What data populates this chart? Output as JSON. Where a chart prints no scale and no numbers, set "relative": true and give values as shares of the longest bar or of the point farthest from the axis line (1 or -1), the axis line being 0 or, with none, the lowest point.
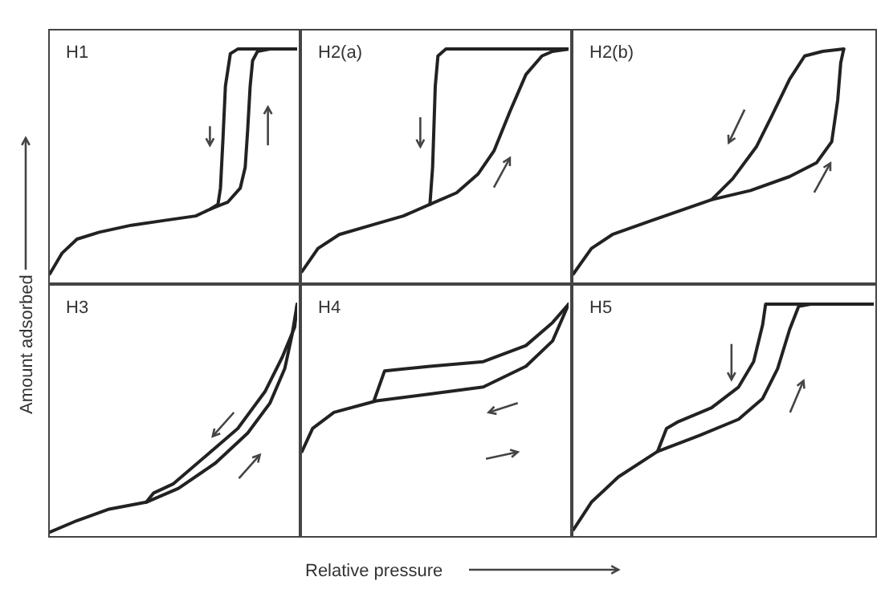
{
  "chart_data": [
    {
      "type": "line",
      "title": "H1",
      "ylabel": "Amount adsorbed",
      "relative": true,
      "categories": [
        null,
        null,
        null,
        null,
        null,
        null,
        null,
        null,
        null,
        null,
        null,
        null,
        null,
        null,
        null,
        null,
        null,
        null,
        null,
        null,
        null,
        null,
        null,
        null,
        null,
        null,
        null,
        null,
        null,
        null,
        null,
        null,
        null,
        null,
        null,
        null,
        null,
        null,
        null,
        null,
        null,
        null,
        null,
        null,
        null,
        null,
        null,
        null,
        null,
        null,
        null,
        null,
        null,
        null,
        null,
        null,
        null,
        null,
        null,
        null,
        null,
        null,
        null,
        null,
        null,
        null,
        null,
        null,
        null,
        null,
        null,
        null,
        null,
        null,
        null,
        null,
        null,
        null,
        null,
        null,
        null,
        null,
        null,
        null,
        null,
        null,
        null,
        null,
        null,
        null,
        null,
        null,
        null,
        null,
        null,
        null,
        null,
        null,
        null,
        null,
        null
      ],
      "series": [
        {
          "color": "#222222",
          "values": [
            0.03,
            null,
            null,
            null,
            null,
            0.12,
            null,
            null,
            null,
            null,
            null,
            0.18,
            null,
            null,
            null,
            null,
            null,
            null,
            null,
            null,
            0.21,
            null,
            null,
            null,
            null,
            null,
            null,
            null,
            null,
            null,
            null,
            null,
            null,
            0.24,
            null,
            null,
            null,
            null,
            null,
            null,
            null,
            null,
            null,
            null,
            null,
            null,
            0.26,
            null,
            null,
            null,
            null,
            null,
            null,
            null,
            null,
            null,
            null,
            null,
            null,
            0.28,
            null,
            null,
            null,
            null,
            null,
            0.31,
            null,
            null,
            null,
            null,
            null,
            null,
            0.34,
            null,
            null,
            null,
            null,
            0.4,
            null,
            0.49,
            0.65,
            0.84,
            0.95,
            null,
            0.99,
            null,
            null,
            null,
            null,
            1,
            null,
            null,
            null,
            null,
            null,
            null,
            null,
            null,
            null,
            null,
            1
          ]
        },
        {
          "color": "#222222",
          "values": [
            null,
            null,
            null,
            null,
            null,
            null,
            null,
            null,
            null,
            null,
            null,
            null,
            null,
            null,
            null,
            null,
            null,
            null,
            null,
            null,
            null,
            null,
            null,
            null,
            null,
            null,
            null,
            null,
            null,
            null,
            null,
            null,
            null,
            null,
            null,
            null,
            null,
            null,
            null,
            null,
            null,
            null,
            null,
            null,
            null,
            null,
            null,
            null,
            null,
            null,
            null,
            null,
            null,
            null,
            null,
            null,
            null,
            null,
            null,
            null,
            null,
            null,
            null,
            null,
            null,
            0.31,
            null,
            null,
            0.33,
            0.4,
            0.61,
            0.84,
            null,
            0.98,
            null,
            null,
            1,
            null,
            null,
            null,
            null,
            null,
            null,
            null,
            null,
            null,
            null,
            null,
            null,
            null,
            null,
            null,
            null,
            null,
            null,
            null,
            null,
            null,
            null,
            null,
            1
          ]
        }
      ]
    },
    {
      "type": "line",
      "title": "H2(a)",
      "relative": true,
      "categories": [
        null,
        null,
        null,
        null,
        null,
        null,
        null,
        null,
        null,
        null,
        null,
        null,
        null,
        null,
        null,
        null,
        null,
        null,
        null,
        null,
        null,
        null,
        null,
        null,
        null,
        null,
        null,
        null,
        null,
        null,
        null,
        null,
        null,
        null,
        null,
        null,
        null,
        null,
        null,
        null,
        null,
        null,
        null,
        null,
        null,
        null,
        null,
        null,
        null,
        null,
        null,
        null,
        null,
        null,
        null,
        null,
        null,
        null,
        null,
        null,
        null,
        null,
        null,
        null,
        null,
        null,
        null,
        null,
        null,
        null,
        null,
        null,
        null,
        null,
        null,
        null,
        null,
        null,
        null,
        null,
        null,
        null,
        null,
        null,
        null,
        null,
        null,
        null,
        null,
        null,
        null,
        null,
        null,
        null,
        null,
        null,
        null,
        null,
        null,
        null,
        null
      ],
      "series": [
        {
          "color": "#222222",
          "values": [
            0.04,
            null,
            null,
            null,
            null,
            null,
            0.14,
            null,
            null,
            null,
            null,
            null,
            null,
            null,
            0.2,
            null,
            null,
            null,
            null,
            null,
            null,
            null,
            null,
            null,
            null,
            null,
            0.24,
            null,
            null,
            null,
            null,
            null,
            null,
            null,
            null,
            null,
            null,
            null,
            0.28,
            null,
            null,
            null,
            null,
            null,
            null,
            null,
            null,
            null,
            0.33,
            null,
            null,
            null,
            null,
            null,
            null,
            null,
            null,
            null,
            0.38,
            null,
            null,
            null,
            null,
            null,
            null,
            null,
            0.46,
            null,
            null,
            null,
            null,
            null,
            0.56,
            null,
            null,
            null,
            null,
            null,
            0.73,
            null,
            null,
            null,
            null,
            null,
            0.89,
            null,
            null,
            null,
            null,
            null,
            0.97,
            null,
            null,
            null,
            0.99,
            null,
            null,
            null,
            null,
            null,
            1
          ]
        },
        {
          "color": "#222222",
          "values": [
            null,
            null,
            null,
            null,
            null,
            null,
            null,
            null,
            null,
            null,
            null,
            null,
            null,
            null,
            null,
            null,
            null,
            null,
            null,
            null,
            null,
            null,
            null,
            null,
            null,
            null,
            null,
            null,
            null,
            null,
            null,
            null,
            null,
            null,
            null,
            null,
            null,
            null,
            null,
            null,
            null,
            null,
            null,
            null,
            null,
            null,
            null,
            null,
            0.33,
            0.49,
            0.84,
            0.97,
            null,
            null,
            1,
            null,
            null,
            null,
            null,
            null,
            null,
            null,
            null,
            null,
            null,
            null,
            null,
            null,
            null,
            null,
            null,
            null,
            null,
            null,
            null,
            null,
            null,
            null,
            null,
            null,
            null,
            null,
            null,
            null,
            null,
            null,
            null,
            null,
            null,
            null,
            null,
            null,
            null,
            null,
            null,
            null,
            null,
            null,
            null,
            null,
            1
          ]
        }
      ]
    },
    {
      "type": "line",
      "title": "H2(b)",
      "relative": true,
      "categories": [
        null,
        null,
        null,
        null,
        null,
        null,
        null,
        null,
        null,
        null,
        null,
        null,
        null,
        null,
        null,
        null,
        null,
        null,
        null,
        null,
        null,
        null,
        null,
        null,
        null,
        null,
        null,
        null,
        null,
        null,
        null,
        null,
        null,
        null,
        null,
        null,
        null,
        null,
        null,
        null,
        null,
        null,
        null,
        null,
        null,
        null,
        null,
        null,
        null,
        null,
        null,
        null,
        null,
        null,
        null,
        null,
        null,
        null,
        null,
        null,
        null,
        null,
        null,
        null,
        null,
        null,
        null,
        null,
        null,
        null,
        null,
        null,
        null,
        null,
        null,
        null,
        null,
        null,
        null,
        null,
        null,
        null,
        null,
        null,
        null,
        null,
        null,
        null,
        null,
        null,
        null,
        null,
        null,
        null,
        null,
        null,
        null,
        null,
        null,
        null,
        null
      ],
      "series": [
        {
          "color": "#222222",
          "values": [
            0.03,
            null,
            null,
            null,
            null,
            null,
            0.14,
            null,
            null,
            null,
            null,
            null,
            null,
            0.2,
            null,
            null,
            null,
            null,
            null,
            null,
            null,
            null,
            null,
            null,
            null,
            null,
            0.26,
            null,
            null,
            null,
            null,
            null,
            null,
            null,
            null,
            null,
            null,
            null,
            null,
            null,
            null,
            null,
            null,
            null,
            null,
            null,
            0.35,
            null,
            null,
            null,
            null,
            null,
            null,
            null,
            null,
            null,
            null,
            null,
            null,
            0.39,
            null,
            null,
            null,
            null,
            null,
            null,
            null,
            null,
            null,
            null,
            null,
            null,
            0.45,
            null,
            null,
            null,
            null,
            null,
            null,
            null,
            null,
            0.51,
            null,
            null,
            null,
            null,
            0.6,
            null,
            0.78,
            0.94,
            1,
            null,
            null,
            null,
            null,
            null,
            null,
            null,
            null,
            null,
            null
          ]
        },
        {
          "color": "#222222",
          "values": [
            null,
            null,
            null,
            null,
            null,
            null,
            null,
            null,
            null,
            null,
            null,
            null,
            null,
            null,
            null,
            null,
            null,
            null,
            null,
            null,
            null,
            null,
            null,
            null,
            null,
            null,
            null,
            null,
            null,
            null,
            null,
            null,
            null,
            null,
            null,
            null,
            null,
            null,
            null,
            null,
            null,
            null,
            null,
            null,
            null,
            null,
            0.35,
            null,
            null,
            null,
            null,
            null,
            null,
            0.44,
            null,
            null,
            null,
            null,
            null,
            null,
            null,
            0.58,
            null,
            null,
            null,
            null,
            0.71,
            null,
            null,
            null,
            null,
            null,
            0.87,
            null,
            null,
            null,
            null,
            0.97,
            null,
            null,
            null,
            null,
            null,
            0.99,
            null,
            null,
            null,
            null,
            null,
            null,
            1,
            null,
            null,
            null,
            null,
            null,
            null,
            null,
            null,
            null,
            null
          ]
        }
      ]
    },
    {
      "type": "line",
      "title": "H3",
      "relative": true,
      "categories": [
        null,
        null,
        null,
        null,
        null,
        null,
        null,
        null,
        null,
        null,
        null,
        null,
        null,
        null,
        null,
        null,
        null,
        null,
        null,
        null,
        null,
        null,
        null,
        null,
        null,
        null,
        null,
        null,
        null,
        null,
        null,
        null,
        null,
        null,
        null,
        null,
        null,
        null,
        null,
        null,
        null,
        null,
        null,
        null,
        null,
        null,
        null,
        null,
        null,
        null,
        null,
        null,
        null,
        null,
        null,
        null,
        null,
        null,
        null,
        null,
        null,
        null,
        null,
        null,
        null,
        null,
        null,
        null,
        null,
        null,
        null,
        null,
        null,
        null,
        null,
        null,
        null,
        null,
        null,
        null,
        null,
        null,
        null,
        null,
        null,
        null,
        null,
        null,
        null,
        null,
        null,
        null,
        null,
        null,
        null,
        null,
        null,
        null,
        null,
        null,
        null
      ],
      "series": [
        {
          "color": "#222222",
          "values": [
            0.01,
            null,
            null,
            null,
            null,
            null,
            null,
            null,
            null,
            null,
            null,
            0.06,
            null,
            null,
            null,
            null,
            null,
            null,
            null,
            null,
            null,
            null,
            null,
            null,
            0.11,
            null,
            null,
            null,
            null,
            null,
            null,
            null,
            null,
            null,
            null,
            null,
            null,
            null,
            null,
            0.14,
            null,
            null,
            null,
            null,
            null,
            null,
            null,
            null,
            null,
            null,
            null,
            null,
            0.2,
            null,
            null,
            null,
            null,
            null,
            null,
            null,
            null,
            null,
            null,
            null,
            null,
            null,
            null,
            0.31,
            null,
            null,
            null,
            null,
            null,
            null,
            null,
            null,
            null,
            null,
            null,
            null,
            0.44,
            null,
            null,
            null,
            null,
            null,
            null,
            null,
            null,
            0.57,
            null,
            null,
            null,
            null,
            null,
            0.72,
            null,
            null,
            0.87,
            null,
            1
          ]
        },
        {
          "color": "#222222",
          "values": [
            null,
            null,
            null,
            null,
            null,
            null,
            null,
            null,
            null,
            null,
            null,
            null,
            null,
            null,
            null,
            null,
            null,
            null,
            null,
            null,
            null,
            null,
            null,
            null,
            null,
            null,
            null,
            null,
            null,
            null,
            null,
            null,
            null,
            null,
            null,
            null,
            null,
            null,
            null,
            0.14,
            null,
            null,
            0.18,
            null,
            null,
            null,
            null,
            null,
            null,
            null,
            0.22,
            null,
            null,
            null,
            null,
            null,
            null,
            null,
            null,
            null,
            null,
            null,
            null,
            0.34,
            null,
            null,
            null,
            null,
            null,
            null,
            null,
            null,
            null,
            null,
            null,
            null,
            0.46,
            null,
            null,
            null,
            null,
            null,
            null,
            null,
            null,
            null,
            null,
            0.62,
            null,
            null,
            null,
            null,
            null,
            null,
            0.77,
            null,
            null,
            null,
            null,
            0.9,
            1
          ]
        }
      ]
    },
    {
      "type": "line",
      "title": "H4",
      "xlabel": "Relative pressure",
      "relative": true,
      "categories": [
        null,
        null,
        null,
        null,
        null,
        null,
        null,
        null,
        null,
        null,
        null,
        null,
        null,
        null,
        null,
        null,
        null,
        null,
        null,
        null,
        null,
        null,
        null,
        null,
        null,
        null,
        null,
        null,
        null,
        null,
        null,
        null,
        null,
        null,
        null,
        null,
        null,
        null,
        null,
        null,
        null,
        null,
        null,
        null,
        null,
        null,
        null,
        null,
        null,
        null,
        null,
        null,
        null,
        null,
        null,
        null,
        null,
        null,
        null,
        null,
        null,
        null,
        null,
        null,
        null,
        null,
        null,
        null,
        null,
        null,
        null,
        null,
        null,
        null,
        null,
        null,
        null,
        null,
        null,
        null,
        null,
        null,
        null,
        null,
        null,
        null,
        null,
        null,
        null,
        null,
        null,
        null,
        null,
        null,
        null,
        null,
        null,
        null,
        null,
        null,
        null
      ],
      "series": [
        {
          "color": "#222222",
          "values": [
            0.36,
            null,
            null,
            null,
            0.46,
            null,
            null,
            null,
            null,
            null,
            null,
            null,
            0.53,
            null,
            null,
            null,
            null,
            null,
            null,
            null,
            null,
            null,
            null,
            null,
            null,
            null,
            null,
            null,
            0.58,
            null,
            null,
            null,
            null,
            null,
            null,
            null,
            null,
            null,
            null,
            null,
            null,
            null,
            null,
            null,
            null,
            null,
            null,
            null,
            0.61,
            null,
            null,
            null,
            null,
            null,
            null,
            null,
            null,
            null,
            null,
            null,
            null,
            null,
            null,
            null,
            null,
            null,
            null,
            null,
            0.64,
            null,
            null,
            null,
            null,
            null,
            null,
            null,
            null,
            null,
            null,
            null,
            null,
            null,
            null,
            null,
            0.73,
            null,
            null,
            null,
            null,
            null,
            null,
            null,
            null,
            null,
            0.84,
            null,
            null,
            null,
            null,
            null,
            1
          ]
        },
        {
          "color": "#222222",
          "values": [
            null,
            null,
            null,
            null,
            null,
            null,
            null,
            null,
            null,
            null,
            null,
            null,
            null,
            null,
            null,
            null,
            null,
            null,
            null,
            null,
            null,
            null,
            null,
            null,
            null,
            null,
            null,
            0.58,
            null,
            null,
            null,
            0.71,
            null,
            null,
            null,
            null,
            null,
            null,
            null,
            null,
            null,
            null,
            null,
            null,
            null,
            null,
            null,
            null,
            0.73,
            null,
            null,
            null,
            null,
            null,
            null,
            null,
            null,
            null,
            null,
            null,
            null,
            null,
            null,
            null,
            null,
            null,
            null,
            null,
            0.75,
            null,
            null,
            null,
            null,
            null,
            null,
            null,
            null,
            null,
            null,
            null,
            null,
            null,
            null,
            null,
            0.82,
            null,
            null,
            null,
            null,
            null,
            null,
            null,
            null,
            null,
            0.92,
            null,
            null,
            null,
            null,
            null,
            1
          ]
        }
      ]
    },
    {
      "type": "line",
      "title": "H5",
      "relative": true,
      "categories": [
        null,
        null,
        null,
        null,
        null,
        null,
        null,
        null,
        null,
        null,
        null,
        null,
        null,
        null,
        null,
        null,
        null,
        null,
        null,
        null,
        null,
        null,
        null,
        null,
        null,
        null,
        null,
        null,
        null,
        null,
        null,
        null,
        null,
        null,
        null,
        null,
        null,
        null,
        null,
        null,
        null,
        null,
        null,
        null,
        null,
        null,
        null,
        null,
        null,
        null,
        null,
        null,
        null,
        null,
        null,
        null,
        null,
        null,
        null,
        null,
        null,
        null,
        null,
        null,
        null,
        null,
        null,
        null,
        null,
        null,
        null,
        null,
        null,
        null,
        null,
        null,
        null,
        null,
        null,
        null,
        null,
        null,
        null,
        null,
        null,
        null,
        null,
        null,
        null,
        null,
        null,
        null,
        null,
        null,
        null,
        null,
        null,
        null,
        null,
        null,
        null
      ],
      "series": [
        {
          "color": "#222222",
          "values": [
            0.02,
            null,
            null,
            null,
            null,
            null,
            0.14,
            null,
            null,
            null,
            null,
            null,
            null,
            null,
            null,
            0.25,
            null,
            null,
            null,
            null,
            null,
            null,
            null,
            null,
            null,
            null,
            null,
            null,
            0.36,
            null,
            null,
            null,
            null,
            null,
            null,
            null,
            null,
            null,
            null,
            null,
            null,
            null,
            0.43,
            null,
            null,
            null,
            null,
            null,
            null,
            null,
            null,
            null,
            null,
            null,
            null,
            0.5,
            null,
            null,
            null,
            null,
            null,
            null,
            null,
            0.59,
            null,
            null,
            null,
            null,
            0.72,
            null,
            null,
            null,
            0.89,
            null,
            null,
            0.99,
            null,
            null,
            null,
            1,
            null,
            null,
            null,
            null,
            null,
            null,
            null,
            null,
            null,
            null,
            null,
            null,
            null,
            null,
            null,
            null,
            null,
            null,
            null,
            null,
            1
          ]
        },
        {
          "color": "#222222",
          "values": [
            null,
            null,
            null,
            null,
            null,
            null,
            null,
            null,
            null,
            null,
            null,
            null,
            null,
            null,
            null,
            null,
            null,
            null,
            null,
            null,
            null,
            null,
            null,
            null,
            null,
            null,
            null,
            null,
            0.36,
            null,
            null,
            0.46,
            null,
            null,
            null,
            0.49,
            null,
            null,
            null,
            null,
            null,
            null,
            null,
            null,
            null,
            null,
            0.55,
            null,
            null,
            null,
            null,
            null,
            null,
            null,
            null,
            0.64,
            null,
            null,
            null,
            null,
            0.75,
            null,
            null,
            0.91,
            1,
            null,
            null,
            null,
            null,
            null,
            null,
            null,
            null,
            null,
            null,
            null,
            null,
            null,
            null,
            null,
            null,
            null,
            null,
            null,
            null,
            null,
            null,
            null,
            null,
            null,
            null,
            null,
            null,
            null,
            null,
            null,
            null,
            null,
            null,
            null,
            1
          ]
        }
      ]
    }
  ]
}
